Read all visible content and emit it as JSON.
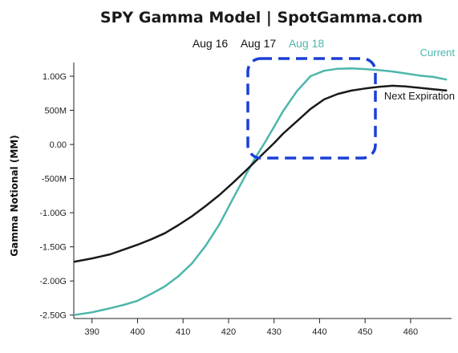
{
  "chart_data": {
    "type": "line",
    "title": "SPY Gamma Model | SpotGamma.com",
    "ylabel": "Gamma Notional (MM)",
    "xlabel": "",
    "dates": [
      {
        "label": "Aug 16",
        "color": "#111111"
      },
      {
        "label": "Aug 17",
        "color": "#111111"
      },
      {
        "label": "Aug 18",
        "color": "#4db6ac"
      }
    ],
    "xlim": [
      386,
      469
    ],
    "ylim": [
      -2550,
      1200
    ],
    "xticks": [
      390,
      400,
      410,
      420,
      430,
      440,
      450,
      460
    ],
    "xtick_labels": [
      "390",
      "400",
      "410",
      "420",
      "430",
      "440",
      "450",
      "460"
    ],
    "yticks": [
      1000,
      500,
      0,
      -500,
      -1000,
      -1500,
      -2000,
      -2500
    ],
    "ytick_labels": [
      "1.00G",
      "500M",
      "0.00",
      "-500M",
      "-1.00G",
      "-1.50G",
      "-2.00G",
      "-2.50G"
    ],
    "series": [
      {
        "name": "Current",
        "color": "#4db6ac",
        "x": [
          386,
          390,
          394,
          397,
          400,
          403,
          406,
          409,
          412,
          415,
          418,
          421,
          424,
          426,
          428,
          430,
          432,
          435,
          438,
          441,
          444,
          447,
          450,
          453,
          456,
          459,
          462,
          465,
          468
        ],
        "y": [
          -2500,
          -2460,
          -2400,
          -2350,
          -2290,
          -2190,
          -2080,
          -1930,
          -1740,
          -1480,
          -1170,
          -790,
          -420,
          -180,
          30,
          260,
          490,
          780,
          1000,
          1080,
          1110,
          1115,
          1105,
          1090,
          1070,
          1040,
          1010,
          990,
          950
        ]
      },
      {
        "name": "Next Expiration",
        "color": "#1a1a1a",
        "x": [
          386,
          390,
          394,
          397,
          400,
          403,
          406,
          409,
          412,
          415,
          418,
          421,
          424,
          426,
          428,
          430,
          432,
          435,
          438,
          441,
          444,
          447,
          450,
          453,
          456,
          459,
          462,
          465,
          468
        ],
        "y": [
          -1720,
          -1670,
          -1610,
          -1540,
          -1470,
          -1390,
          -1300,
          -1180,
          -1050,
          -900,
          -740,
          -560,
          -370,
          -240,
          -110,
          20,
          160,
          340,
          520,
          660,
          740,
          790,
          820,
          845,
          860,
          850,
          830,
          810,
          790
        ]
      }
    ],
    "grid": false,
    "legend": "inline",
    "annotation": {
      "shape": "dashed-rounded-rectangle",
      "color": "#1a3fd6"
    }
  }
}
